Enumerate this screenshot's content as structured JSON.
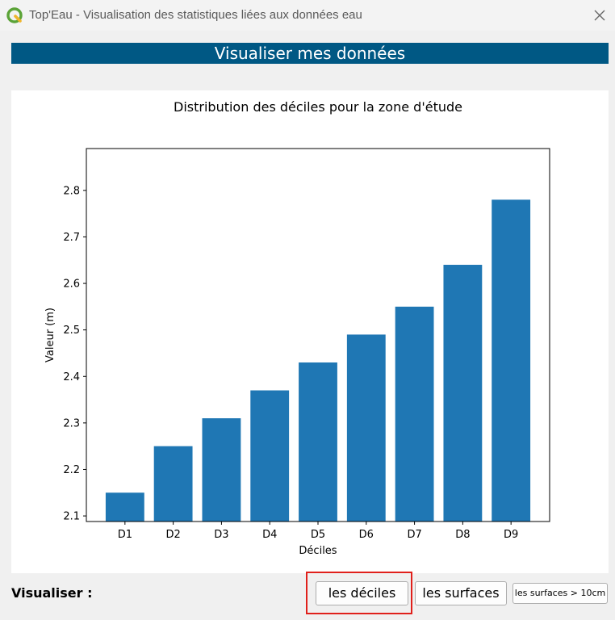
{
  "window": {
    "title": "Top'Eau - Visualisation des statistiques liées aux données eau",
    "logo_icon": "qgis-logo-icon",
    "close_icon": "close-icon"
  },
  "banner": {
    "text": "Visualiser mes données"
  },
  "footer": {
    "label": "Visualiser :",
    "buttons": {
      "deciles": "les déciles",
      "surfaces": "les surfaces",
      "surfaces_10cm": "les surfaces > 10cm"
    }
  },
  "colors": {
    "bar": "#1f77b4",
    "banner": "#005884",
    "highlight": "#e0201b"
  },
  "chart_data": {
    "type": "bar",
    "title": "Distribution des déciles pour la zone d'étude",
    "xlabel": "Déciles",
    "ylabel": "Valeur (m)",
    "categories": [
      "D1",
      "D2",
      "D3",
      "D4",
      "D5",
      "D6",
      "D7",
      "D8",
      "D9"
    ],
    "values": [
      2.15,
      2.25,
      2.31,
      2.37,
      2.43,
      2.49,
      2.55,
      2.64,
      2.78
    ],
    "ylim": [
      2.088,
      2.89
    ],
    "yticks": [
      "2.1",
      "2.2",
      "2.3",
      "2.4",
      "2.5",
      "2.6",
      "2.7",
      "2.8"
    ],
    "grid": false
  }
}
